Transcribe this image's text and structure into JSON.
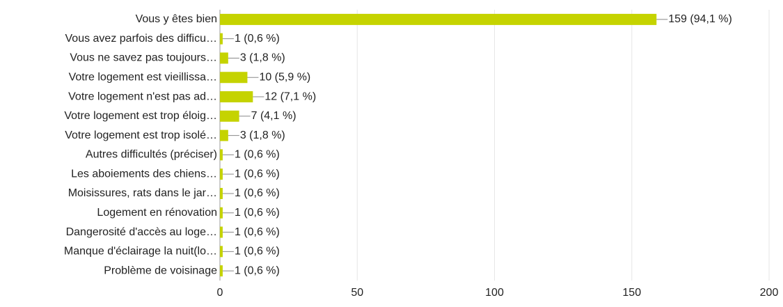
{
  "chart_data": {
    "type": "bar",
    "orientation": "horizontal",
    "categories": [
      "Vous y êtes bien",
      "Vous avez parfois des difficu…",
      "Vous ne savez pas toujours…",
      "Votre logement est vieillissa…",
      "Votre logement n'est pas ad…",
      "Votre logement est trop éloig…",
      "Votre logement est trop isolé…",
      "Autres difficultés (préciser)",
      "Les aboiements des chiens…",
      "Moisissures, rats dans le jar…",
      "Logement en rénovation",
      "Dangerosité d'accès au loge…",
      "Manque d'éclairage la nuit(lo…",
      "Problème de voisinage"
    ],
    "values": [
      159,
      1,
      3,
      10,
      12,
      7,
      3,
      1,
      1,
      1,
      1,
      1,
      1,
      1
    ],
    "value_labels": [
      "159 (94,1 %)",
      "1 (0,6 %)",
      "3 (1,8 %)",
      "10 (5,9 %)",
      "12 (7,1 %)",
      "7 (4,1 %)",
      "3 (1,8 %)",
      "1 (0,6 %)",
      "1 (0,6 %)",
      "1 (0,6 %)",
      "1 (0,6 %)",
      "1 (0,6 %)",
      "1 (0,6 %)",
      "1 (0,6 %)"
    ],
    "color": "#c5d300",
    "xlim": [
      0,
      200
    ],
    "xticks": [
      0,
      50,
      100,
      150,
      200
    ],
    "grid": true
  }
}
